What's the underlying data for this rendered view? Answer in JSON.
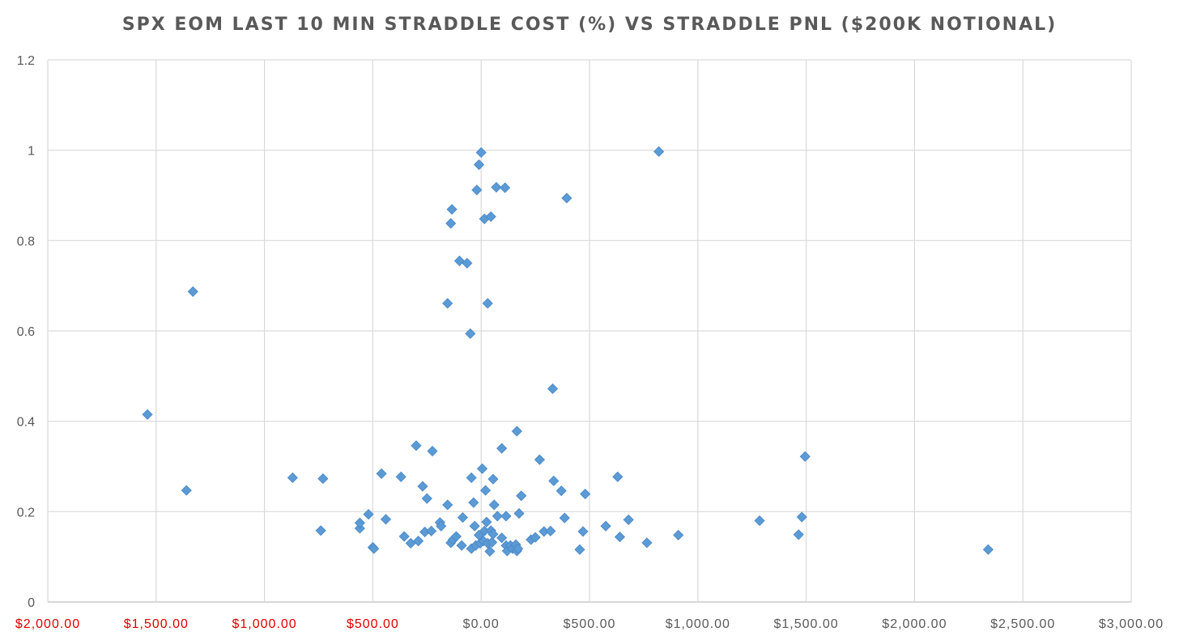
{
  "chart_data": {
    "type": "scatter",
    "title": "SPX EOM LAST 10 MIN STRADDLE COST (%) VS STRADDLE PNL ($200K NOTIONAL)",
    "xlabel": "",
    "ylabel": "",
    "xlim": [
      -2000,
      3000
    ],
    "ylim": [
      0,
      1.2
    ],
    "x_ticks": [
      -2000,
      -1500,
      -1000,
      -500,
      0,
      500,
      1000,
      1500,
      2000,
      2500,
      3000
    ],
    "x_tick_labels": [
      "$2,000.00",
      "$1,500.00",
      "$1,000.00",
      "$500.00",
      "$0.00",
      "$500.00",
      "$1,000.00",
      "$1,500.00",
      "$2,000.00",
      "$2,500.00",
      "$3,000.00"
    ],
    "y_ticks": [
      0,
      0.2,
      0.4,
      0.6,
      0.8,
      1,
      1.2
    ],
    "y_tick_labels": [
      "0",
      "0.2",
      "0.4",
      "0.6",
      "0.8",
      "1",
      "1.2"
    ],
    "grid": true,
    "legend": "none",
    "marker": "diamond",
    "colors": {
      "marker": "#5b9bd5",
      "marker_edge": "#4a86c5",
      "negative_label": "#e00000",
      "positive_label": "#595959",
      "grid": "#d9d9d9"
    },
    "series": [
      {
        "points": [
          [
            -1540,
            0.415
          ],
          [
            -1360,
            0.247
          ],
          [
            -1330,
            0.687
          ],
          [
            -870,
            0.275
          ],
          [
            -730,
            0.273
          ],
          [
            -740,
            0.158
          ],
          [
            -560,
            0.163
          ],
          [
            -560,
            0.175
          ],
          [
            -520,
            0.194
          ],
          [
            -500,
            0.121
          ],
          [
            -495,
            0.118
          ],
          [
            -460,
            0.284
          ],
          [
            -440,
            0.183
          ],
          [
            -370,
            0.277
          ],
          [
            -355,
            0.145
          ],
          [
            -325,
            0.13
          ],
          [
            -300,
            0.346
          ],
          [
            -290,
            0.135
          ],
          [
            -270,
            0.256
          ],
          [
            -260,
            0.155
          ],
          [
            -250,
            0.229
          ],
          [
            -230,
            0.157
          ],
          [
            -225,
            0.334
          ],
          [
            -190,
            0.176
          ],
          [
            -185,
            0.168
          ],
          [
            -155,
            0.661
          ],
          [
            -155,
            0.215
          ],
          [
            -140,
            0.838
          ],
          [
            -135,
            0.869
          ],
          [
            -140,
            0.131
          ],
          [
            -130,
            0.138
          ],
          [
            -115,
            0.145
          ],
          [
            -100,
            0.755
          ],
          [
            -90,
            0.125
          ],
          [
            -85,
            0.187
          ],
          [
            -65,
            0.75
          ],
          [
            -50,
            0.594
          ],
          [
            -45,
            0.275
          ],
          [
            -45,
            0.118
          ],
          [
            -35,
            0.22
          ],
          [
            -30,
            0.168
          ],
          [
            -25,
            0.125
          ],
          [
            -20,
            0.912
          ],
          [
            -10,
            0.968
          ],
          [
            -5,
            0.13
          ],
          [
            -10,
            0.148
          ],
          [
            0,
            0.995
          ],
          [
            5,
            0.295
          ],
          [
            10,
            0.135
          ],
          [
            15,
            0.157
          ],
          [
            15,
            0.848
          ],
          [
            20,
            0.247
          ],
          [
            25,
            0.177
          ],
          [
            30,
            0.661
          ],
          [
            30,
            0.13
          ],
          [
            40,
            0.112
          ],
          [
            45,
            0.158
          ],
          [
            45,
            0.853
          ],
          [
            50,
            0.132
          ],
          [
            55,
            0.15
          ],
          [
            55,
            0.272
          ],
          [
            60,
            0.215
          ],
          [
            70,
            0.918
          ],
          [
            75,
            0.19
          ],
          [
            95,
            0.34
          ],
          [
            95,
            0.142
          ],
          [
            110,
            0.917
          ],
          [
            115,
            0.125
          ],
          [
            115,
            0.19
          ],
          [
            120,
            0.113
          ],
          [
            135,
            0.125
          ],
          [
            145,
            0.118
          ],
          [
            160,
            0.127
          ],
          [
            165,
            0.378
          ],
          [
            165,
            0.113
          ],
          [
            170,
            0.118
          ],
          [
            175,
            0.196
          ],
          [
            185,
            0.235
          ],
          [
            230,
            0.138
          ],
          [
            250,
            0.143
          ],
          [
            270,
            0.315
          ],
          [
            290,
            0.156
          ],
          [
            320,
            0.157
          ],
          [
            330,
            0.472
          ],
          [
            335,
            0.268
          ],
          [
            370,
            0.246
          ],
          [
            385,
            0.186
          ],
          [
            395,
            0.894
          ],
          [
            455,
            0.116
          ],
          [
            470,
            0.156
          ],
          [
            480,
            0.239
          ],
          [
            575,
            0.168
          ],
          [
            630,
            0.277
          ],
          [
            640,
            0.144
          ],
          [
            680,
            0.182
          ],
          [
            765,
            0.131
          ],
          [
            820,
            0.997
          ],
          [
            910,
            0.148
          ],
          [
            1285,
            0.18
          ],
          [
            1465,
            0.149
          ],
          [
            1480,
            0.188
          ],
          [
            1495,
            0.322
          ],
          [
            2340,
            0.116
          ]
        ]
      }
    ]
  }
}
